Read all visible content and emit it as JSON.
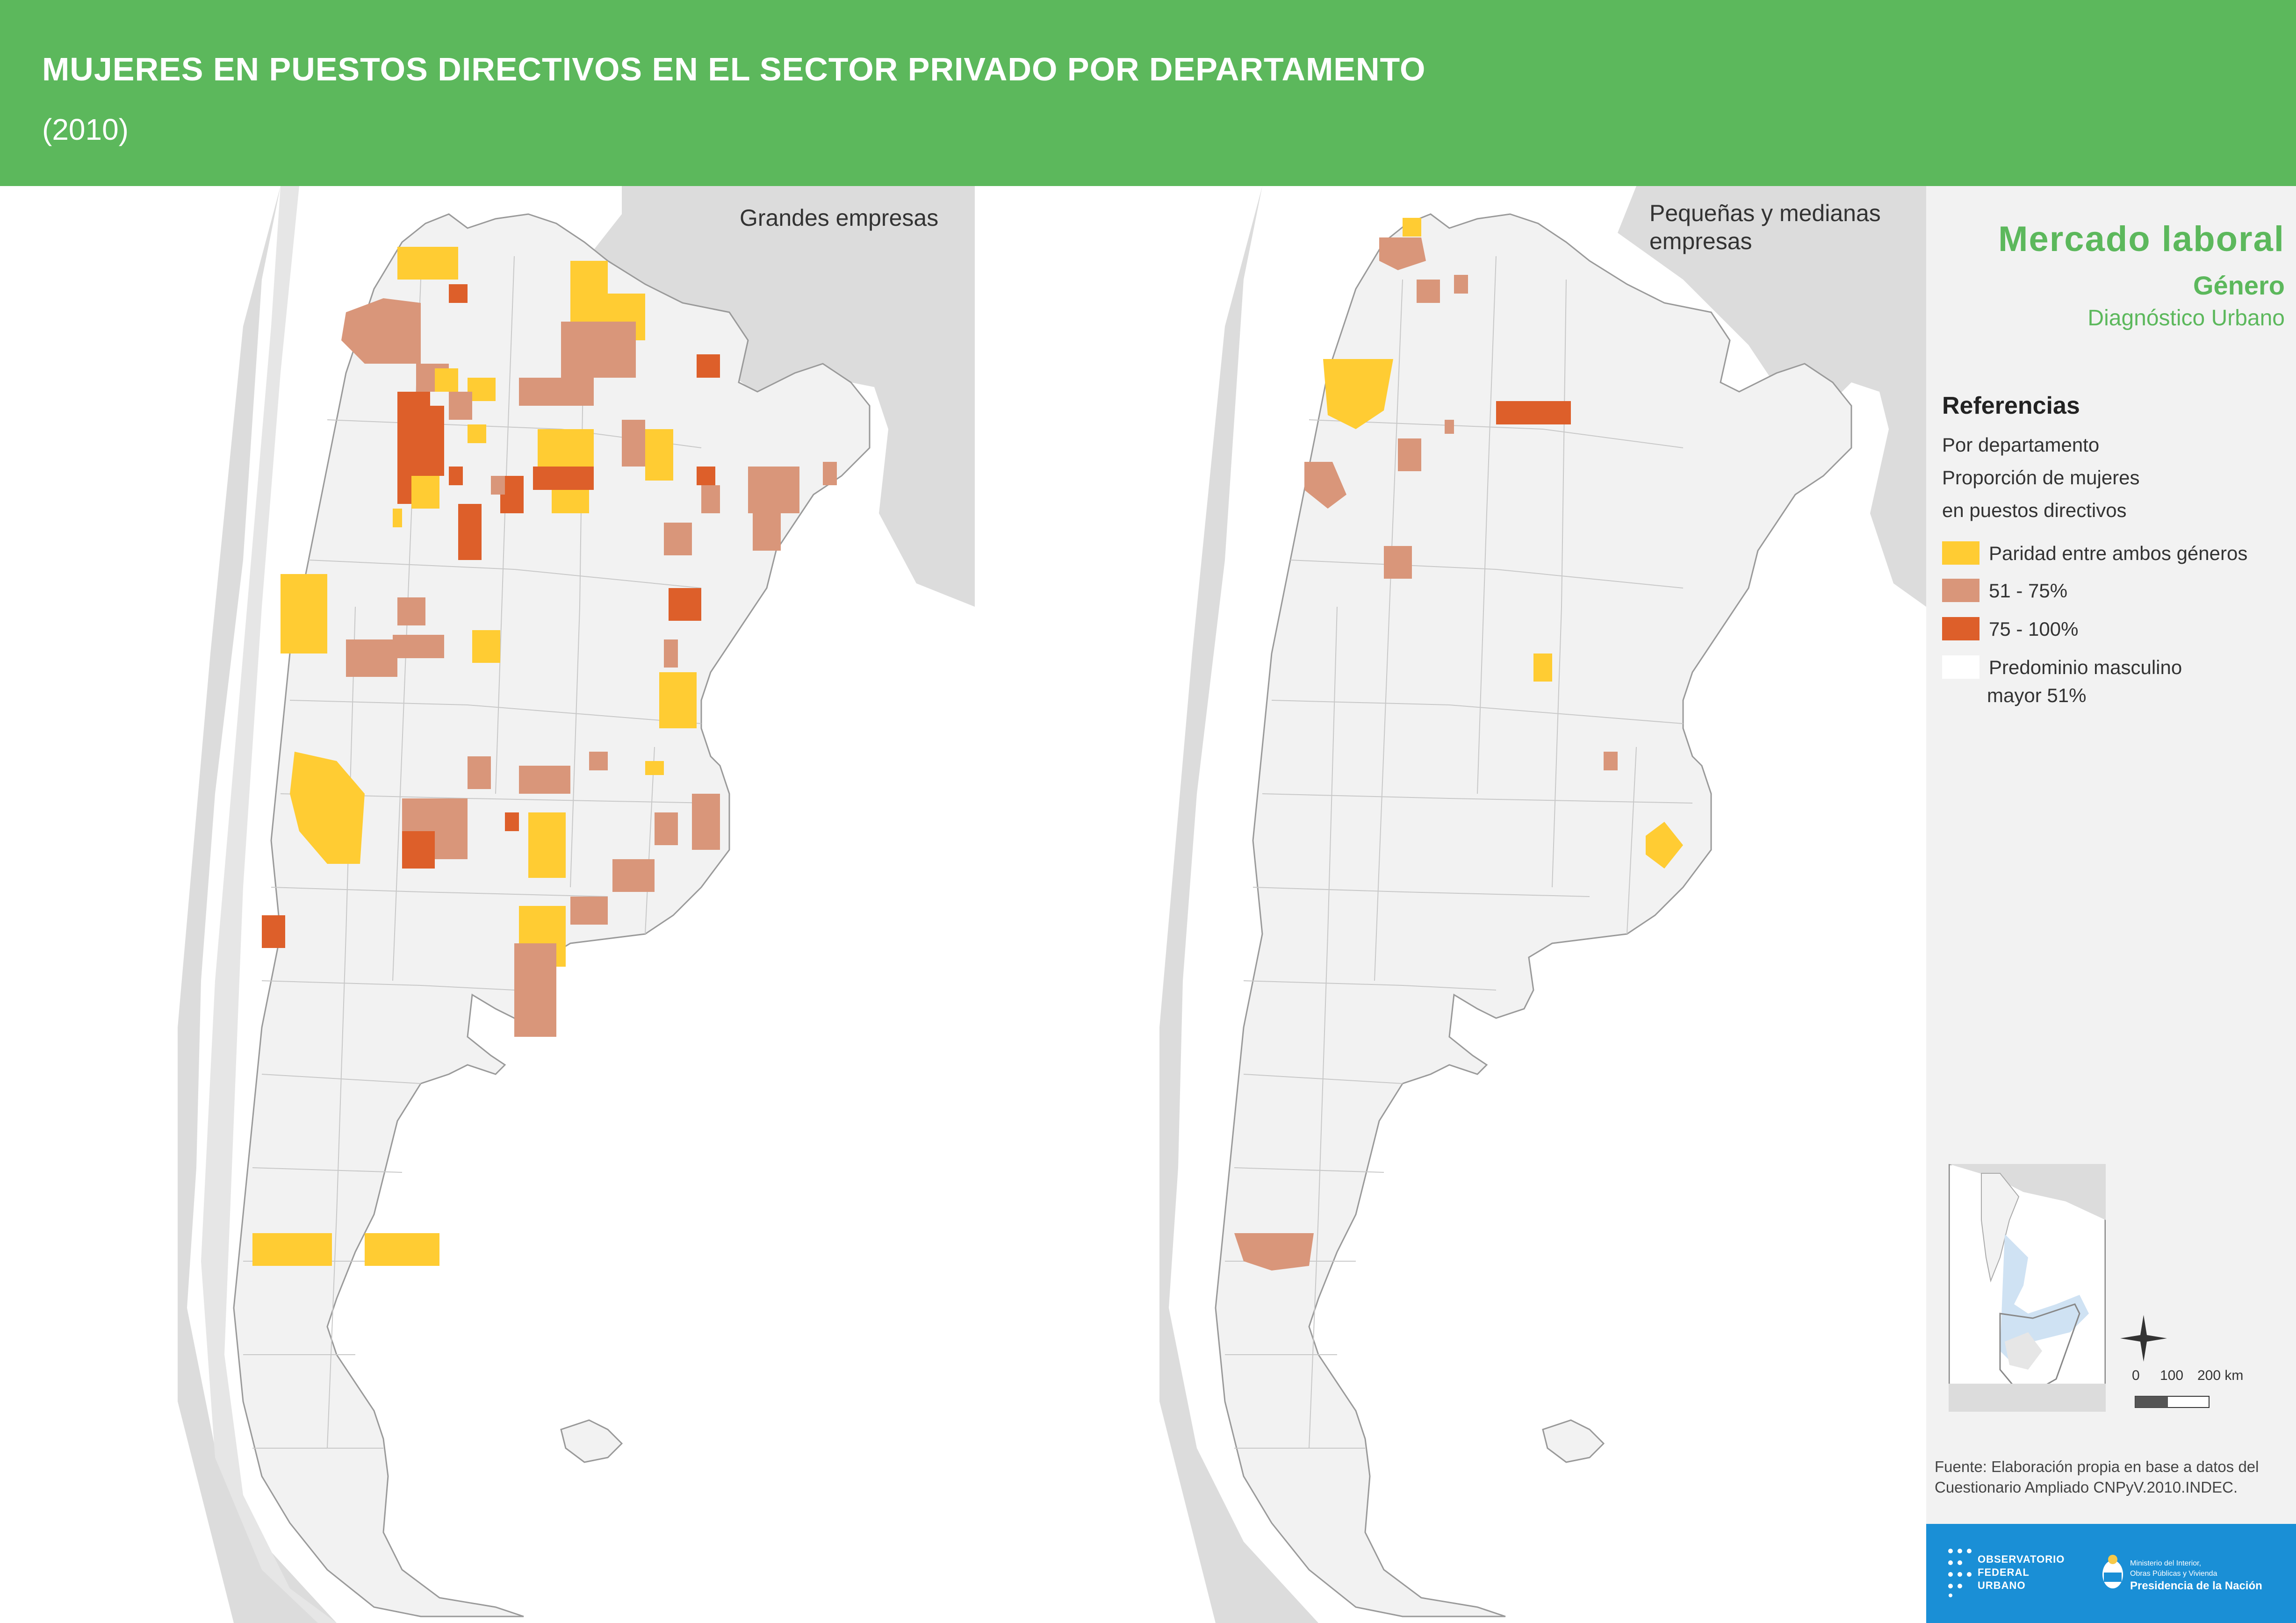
{
  "header": {
    "title": "MUJERES EN PUESTOS DIRECTIVOS EN EL SECTOR PRIVADO POR DEPARTAMENTO",
    "subtitle": "(2010)"
  },
  "maps": {
    "left_title": "Grandes empresas",
    "right_title_line1": "Pequeñas y medianas",
    "right_title_line2": "empresas"
  },
  "sidebar": {
    "heading": "Mercado laboral",
    "subheading": "Género",
    "tagline": "Diagnóstico Urbano",
    "references_title": "Referencias",
    "ref_line1": "Por departamento",
    "ref_line2": "Proporción de mujeres",
    "ref_line3": "en puestos directivos",
    "legend": [
      {
        "label": "Paridad entre ambos géneros",
        "color": "#ffcc33"
      },
      {
        "label": " 51 - 75%",
        "color": "#d9967a"
      },
      {
        "label": " 75 - 100%",
        "color": "#dd5f2a"
      },
      {
        "label": "Predominio masculino",
        "label2": "mayor 51%",
        "color": "#f2f2f2"
      }
    ],
    "scale": {
      "tick0": "0",
      "tick1": "100",
      "tick2": "200 km"
    },
    "source_line1": "Fuente: Elaboración propia en base a datos del",
    "source_line2": "Cuestionario Ampliado CNPyV.2010.INDEC.",
    "logos": {
      "observatorio_line1": "OBSERVATORIO",
      "observatorio_line2": "FEDERAL",
      "observatorio_line3": "URBANO",
      "ministry_line1": "Ministerio del Interior,",
      "ministry_line2": "Obras Públicas y Vivienda",
      "ministry_line3": "Presidencia de la Nación"
    }
  },
  "colors": {
    "header_green": "#5cb85c",
    "paridad": "#ffcc33",
    "mid": "#d9967a",
    "high": "#dd5f2a",
    "land": "#f2f2f2",
    "neighbors": "#dcdcdc",
    "logo_blue": "#1a8fd6"
  }
}
